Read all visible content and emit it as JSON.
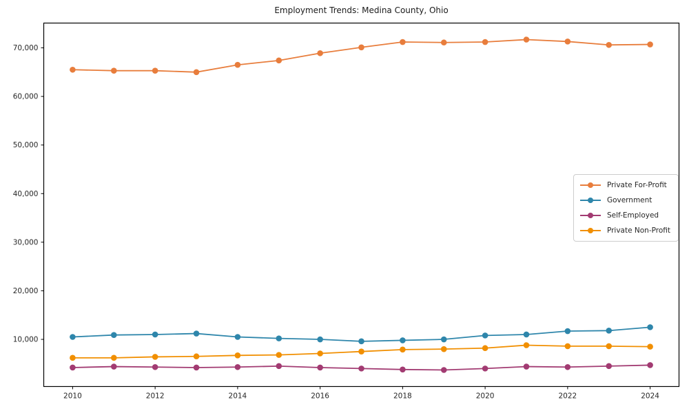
{
  "figure": {
    "background": "#ffffff",
    "axis_color": "#000000",
    "tick_label_color": "#262626"
  },
  "chart_data": {
    "type": "line",
    "title": "Employment Trends: Medina County, Ohio",
    "xlabel": "",
    "ylabel": "",
    "x": [
      2010,
      2011,
      2012,
      2013,
      2014,
      2015,
      2016,
      2017,
      2018,
      2019,
      2020,
      2021,
      2022,
      2023,
      2024
    ],
    "series": [
      {
        "name": "Private For-Profit",
        "color": "#E87D3C",
        "values": [
          65500,
          65300,
          65300,
          65000,
          66500,
          67400,
          68900,
          70100,
          71200,
          71100,
          71200,
          71700,
          71300,
          70600,
          70700
        ]
      },
      {
        "name": "Government",
        "color": "#2E86AB",
        "values": [
          10500,
          10900,
          11000,
          11200,
          10500,
          10200,
          10000,
          9600,
          9800,
          10000,
          10800,
          11000,
          11700,
          11800,
          12500
        ]
      },
      {
        "name": "Self-Employed",
        "color": "#A23B72",
        "values": [
          4200,
          4400,
          4300,
          4200,
          4300,
          4500,
          4200,
          4000,
          3800,
          3700,
          4000,
          4400,
          4300,
          4500,
          4700
        ]
      },
      {
        "name": "Private Non-Profit",
        "color": "#F18F01",
        "values": [
          6200,
          6200,
          6400,
          6500,
          6700,
          6800,
          7100,
          7500,
          7900,
          8000,
          8200,
          8800,
          8600,
          8600,
          8500
        ]
      }
    ],
    "xticks": [
      2010,
      2012,
      2014,
      2016,
      2018,
      2020,
      2022,
      2024
    ],
    "yticks": [
      10000,
      20000,
      30000,
      40000,
      50000,
      60000,
      70000
    ],
    "ytick_labels": [
      "10,000",
      "20,000",
      "30,000",
      "40,000",
      "50,000",
      "60,000",
      "70,000"
    ],
    "xlim": [
      2009.3,
      2024.7
    ],
    "ylim": [
      300,
      75100
    ],
    "grid": false,
    "legend_position": "center-right",
    "marker": "circle"
  }
}
